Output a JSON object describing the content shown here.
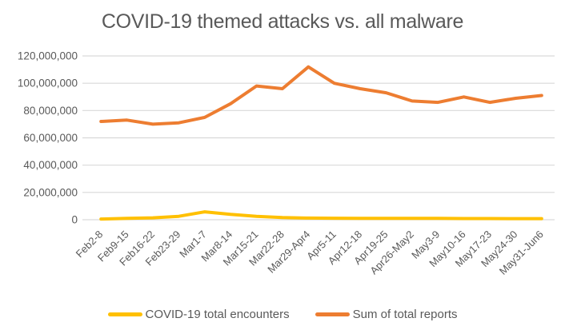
{
  "title": "COVID-19 themed attacks vs. all malware",
  "colors": {
    "encounters_line": "#FFC000",
    "reports_line": "#ED7D31",
    "gridline": "#D9D9D9",
    "axis_text": "#595959",
    "title_text": "#595959",
    "background": "#FFFFFF"
  },
  "legend": [
    {
      "name": "COVID-19 total encounters",
      "color": "#FFC000"
    },
    {
      "name": "Sum of total reports",
      "color": "#ED7D31"
    }
  ],
  "chart_data": {
    "type": "line",
    "title": "COVID-19 themed attacks vs. all malware",
    "categories": [
      "Feb2-8",
      "Feb9-15",
      "Feb16-22",
      "Feb23-29",
      "Mar1-7",
      "Mar8-14",
      "Mar15-21",
      "Mar22-28",
      "Mar29-Apr4",
      "Apr5-11",
      "Apr12-18",
      "Apr19-25",
      "Apr26-May2",
      "May3-9",
      "May10-16",
      "May17-23",
      "May24-30",
      "May31-Jun6"
    ],
    "series": [
      {
        "name": "COVID-19 total encounters",
        "color": "#FFC000",
        "values": [
          500000,
          1000000,
          1400000,
          2500000,
          5800000,
          3900000,
          2500000,
          1600000,
          1200000,
          1100000,
          1000000,
          1000000,
          1000000,
          1000000,
          900000,
          900000,
          800000,
          800000
        ]
      },
      {
        "name": "Sum of total reports",
        "color": "#ED7D31",
        "values": [
          72000000,
          73000000,
          70000000,
          71000000,
          75000000,
          85000000,
          98000000,
          96000000,
          112000000,
          100000000,
          96000000,
          93000000,
          87000000,
          86000000,
          90000000,
          86000000,
          89000000,
          91000000
        ]
      }
    ],
    "xlabel": "",
    "ylabel": "",
    "ylim": [
      0,
      120000000
    ],
    "ytick_interval": 20000000,
    "ytick_labels": [
      "0",
      "20,000,000",
      "40,000,000",
      "60,000,000",
      "80,000,000",
      "100,000,000",
      "120,000,000"
    ],
    "grid": true,
    "legend_position": "bottom"
  }
}
